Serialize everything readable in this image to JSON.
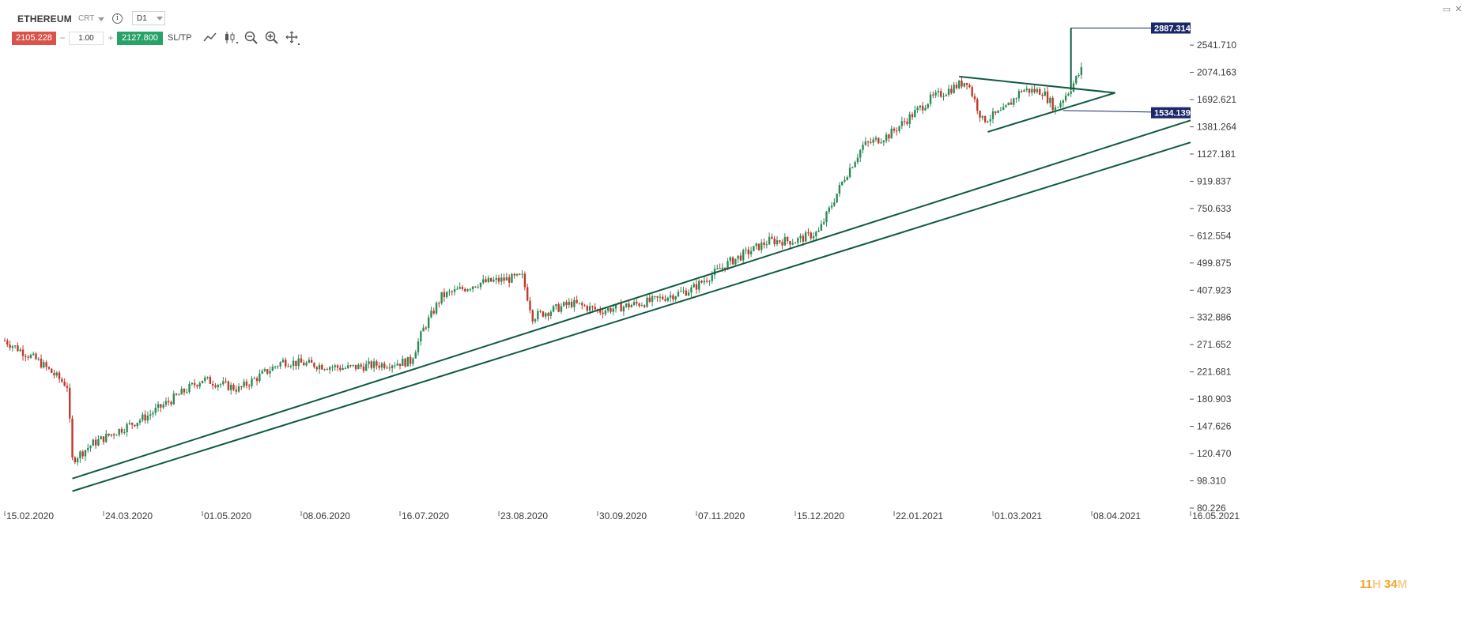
{
  "toolbar": {
    "symbol": "ETHEREUM",
    "instrument_type": "CRT",
    "info_icon": "info-icon",
    "timeframe": "D1",
    "sell_price": "2105.228",
    "minus": "−",
    "quantity": "1.00",
    "plus": "+",
    "buy_price": "2127.800",
    "sltp_label": "SL/TP",
    "icons": [
      "line-chart-icon",
      "candlestick-icon",
      "zoom-out-icon",
      "zoom-in-icon",
      "move-icon"
    ],
    "window_icons": [
      "minimize-icon",
      "close-icon"
    ]
  },
  "timer": {
    "hours": "11",
    "h_unit": "H",
    "minutes": "34",
    "m_unit": "M"
  },
  "colors": {
    "up": "#2e8b57",
    "down": "#c0392b",
    "trendline": "#0e5c3e",
    "tag": "#1a2769",
    "sell": "#d9534a",
    "buy": "#27a367"
  },
  "chart_data": {
    "type": "candlestick",
    "title": "",
    "xlabel": "",
    "ylabel": "",
    "y_scale": "log",
    "x_tick_labels": [
      "15.02.2020",
      "24.03.2020",
      "01.05.2020",
      "08.06.2020",
      "16.07.2020",
      "23.08.2020",
      "30.09.2020",
      "07.11.2020",
      "15.12.2020",
      "22.01.2021",
      "01.03.2021",
      "08.04.2021",
      "16.05.2021"
    ],
    "y_tick_labels": [
      "2541.710",
      "2074.163",
      "1692.621",
      "1381.264",
      "1127.181",
      "919.837",
      "750.633",
      "612.554",
      "499.875",
      "407.923",
      "332.886",
      "271.652",
      "221.681",
      "180.903",
      "147.626",
      "120.470",
      "98.310",
      "80.226"
    ],
    "xlim": [
      "2020-02-15",
      "2021-05-16"
    ],
    "ylim": [
      80.226,
      3000
    ],
    "price_tags": [
      {
        "label": "2887.314",
        "value": 2887.314
      },
      {
        "label": "1534.139",
        "value": 1534.139
      }
    ],
    "anchors": [
      {
        "date": "2020-02-15",
        "close": 280
      },
      {
        "date": "2020-02-28",
        "close": 240
      },
      {
        "date": "2020-03-10",
        "close": 200
      },
      {
        "date": "2020-03-12",
        "close": 115
      },
      {
        "date": "2020-03-20",
        "close": 130
      },
      {
        "date": "2020-04-10",
        "close": 160
      },
      {
        "date": "2020-05-01",
        "close": 210
      },
      {
        "date": "2020-05-15",
        "close": 195
      },
      {
        "date": "2020-06-01",
        "close": 240
      },
      {
        "date": "2020-06-25",
        "close": 228
      },
      {
        "date": "2020-07-20",
        "close": 240
      },
      {
        "date": "2020-07-25",
        "close": 305
      },
      {
        "date": "2020-08-01",
        "close": 390
      },
      {
        "date": "2020-08-15",
        "close": 430
      },
      {
        "date": "2020-09-01",
        "close": 450
      },
      {
        "date": "2020-09-05",
        "close": 335
      },
      {
        "date": "2020-09-20",
        "close": 370
      },
      {
        "date": "2020-10-01",
        "close": 350
      },
      {
        "date": "2020-10-20",
        "close": 375
      },
      {
        "date": "2020-11-05",
        "close": 410
      },
      {
        "date": "2020-11-20",
        "close": 505
      },
      {
        "date": "2020-12-05",
        "close": 590
      },
      {
        "date": "2020-12-15",
        "close": 590
      },
      {
        "date": "2020-12-24",
        "close": 630
      },
      {
        "date": "2021-01-03",
        "close": 950
      },
      {
        "date": "2021-01-10",
        "close": 1200
      },
      {
        "date": "2021-01-20",
        "close": 1300
      },
      {
        "date": "2021-02-05",
        "close": 1700
      },
      {
        "date": "2021-02-19",
        "close": 1950
      },
      {
        "date": "2021-02-25",
        "close": 1450
      },
      {
        "date": "2021-03-05",
        "close": 1550
      },
      {
        "date": "2021-03-12",
        "close": 1820
      },
      {
        "date": "2021-03-20",
        "close": 1800
      },
      {
        "date": "2021-03-25",
        "close": 1580
      },
      {
        "date": "2021-03-31",
        "close": 1850
      },
      {
        "date": "2021-04-04",
        "close": 2110
      }
    ],
    "trendlines": [
      {
        "name": "channel-upper",
        "from": {
          "date": "2020-03-12",
          "value": 100
        },
        "to": {
          "date": "2021-05-16",
          "value": 1450
        }
      },
      {
        "name": "channel-lower",
        "from": {
          "date": "2020-03-12",
          "value": 91
        },
        "to": {
          "date": "2021-05-16",
          "value": 1230
        }
      },
      {
        "name": "triangle-top",
        "from": {
          "date": "2021-02-16",
          "value": 2010
        },
        "to": {
          "date": "2021-04-17",
          "value": 1780
        }
      },
      {
        "name": "triangle-bottom",
        "from": {
          "date": "2021-02-27",
          "value": 1330
        },
        "to": {
          "date": "2021-04-17",
          "value": 1780
        }
      },
      {
        "name": "target-vertical",
        "from": {
          "date": "2021-03-31",
          "value": 1820
        },
        "to": {
          "date": "2021-03-31",
          "value": 2887.314
        }
      },
      {
        "name": "target-to-tag",
        "from": {
          "date": "2021-03-31",
          "value": 2887.314
        },
        "to": {
          "date": "2021-05-16",
          "value": 2887.314
        }
      },
      {
        "name": "support-to-tag",
        "from": {
          "date": "2021-03-28",
          "value": 1560
        },
        "to": {
          "date": "2021-05-16",
          "value": 1534.139
        }
      }
    ],
    "grid": false,
    "legend": "none"
  }
}
